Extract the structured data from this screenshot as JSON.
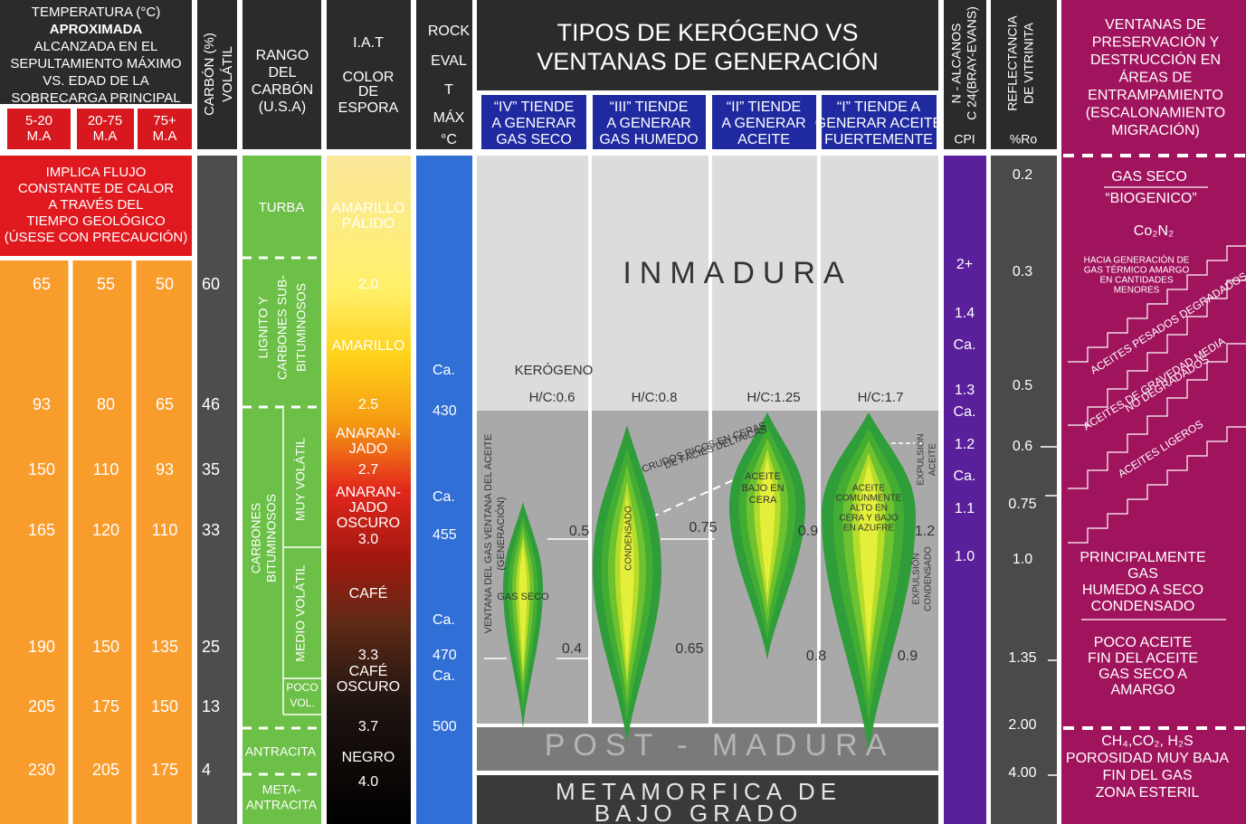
{
  "temperature": {
    "header": [
      "TEMPERATURA (°C)",
      "APROXIMADA",
      "ALCANZADA EN EL",
      "SEPULTAMIENTO MÁXIMO",
      "VS. EDAD DE LA",
      "SOBRECARGA PRINCIPAL"
    ],
    "ages": [
      [
        "5-20",
        "M.A"
      ],
      [
        "20-75",
        "M.A"
      ],
      [
        "75+",
        "M.A"
      ]
    ],
    "note": [
      "IMPLICA FLUJO",
      "CONSTANTE DE CALOR",
      "A TRAVÉS DEL",
      "TIEMPO GEOLÓGICO",
      "(ÚSESE CON PRECAUCIÓN)"
    ],
    "rows": [
      [
        "65",
        "55",
        "50"
      ],
      [
        "93",
        "80",
        "65"
      ],
      [
        "150",
        "110",
        "93"
      ],
      [
        "165",
        "120",
        "110"
      ],
      [
        "190",
        "150",
        "135"
      ],
      [
        "205",
        "175",
        "150"
      ],
      [
        "230",
        "205",
        "175"
      ]
    ]
  },
  "carbon": {
    "header": [
      "CARBÓN (%)",
      "VOLÁTIL"
    ],
    "values": [
      "60",
      "46",
      "35",
      "33",
      "25",
      "13",
      "4"
    ]
  },
  "rank": {
    "header": [
      "RANGO",
      "DEL",
      "CARBÓN",
      "(U.S.A)"
    ],
    "turba": "TURBA",
    "lignito": [
      "LIGNITO Y",
      "CARBONES SUB-",
      "BITUMINOSOS"
    ],
    "bituminosos": [
      "CARBONES",
      "BITUMINOSOS"
    ],
    "muy_volatil": "MUY VOLÁTIL",
    "medio_volatil": "MEDIO VOLÁTIL",
    "poco_volatil": [
      "POCO",
      "VOL."
    ],
    "antracita": "ANTRACITA",
    "meta_antracita": [
      "META-",
      "ANTRACITA"
    ]
  },
  "iat": {
    "header": [
      "I.A.T",
      "COLOR",
      "DE",
      "ESPORA"
    ],
    "labels": [
      [
        "AMARILLO",
        "PÁLIDO"
      ],
      [
        "2.0"
      ],
      [
        "AMARILLO"
      ],
      [
        "2.5"
      ],
      [
        "ANARAN-",
        "JADO"
      ],
      [
        "2.7"
      ],
      [
        "ANARAN-",
        "JADO",
        "OSCURO"
      ],
      [
        "3.0"
      ],
      [
        "CAFÉ"
      ],
      [
        "3.3"
      ],
      [
        "CAFÉ",
        "OSCURO"
      ],
      [
        "3.7"
      ],
      [
        "NEGRO"
      ],
      [
        "4.0"
      ]
    ]
  },
  "rock_eval": {
    "header": [
      "ROCK",
      "EVAL",
      "T",
      "MÁX",
      "°C"
    ],
    "labels": [
      "Ca.",
      "430",
      "Ca.",
      "455",
      "Ca.",
      "470",
      "Ca.",
      "500"
    ]
  },
  "kerogen": {
    "title": [
      "TIPOS DE KERÓGENO VS",
      "VENTANAS DE GENERACIÓN"
    ],
    "types": [
      [
        "“IV” TIENDE",
        "A GENERAR",
        "GAS SECO"
      ],
      [
        "“III” TIENDE",
        "A GENERAR",
        "GAS HUMEDO"
      ],
      [
        "“II” TIENDE",
        "A GENERAR",
        "ACEITE"
      ],
      [
        "“I” TIENDE A",
        "GENERAR ACEITE",
        "FUERTEMENTE"
      ]
    ],
    "zones": {
      "inmadura": "INMADURA",
      "post_madura": "POST - MADURA",
      "metamorfica": [
        "METAMORFICA DE",
        "BAJO GRADO"
      ]
    },
    "kerogeno_label": "KERÓGENO",
    "hc": [
      "H/C:0.6",
      "H/C:0.8",
      "H/C:1.25",
      "H/C:1.7"
    ],
    "upper_values": [
      "0.5",
      "0.75",
      "0.9",
      "1.2"
    ],
    "lower_values": [
      "0.4",
      "0.65",
      "0.8",
      "0.9"
    ],
    "window_label": [
      "VENTANA DEL GAS VENTANA DEL ACEITE",
      "(GENERACIÓN)"
    ],
    "gas_seco": "GAS SECO",
    "condensado": "CONDENSADO",
    "crudos": [
      "CRUDOS RICOS EN CERAS",
      "DE FACIES DELTAICAS"
    ],
    "aceite_cera": [
      "ACEITE",
      "BAJO EN",
      "CERA"
    ],
    "aceite_azufre": [
      "ACEITE",
      "COMUNMENTE",
      "ALTO EN",
      "CERA Y BAJO",
      "EN AZUFRE"
    ],
    "expulsion_aceite": [
      "EXPULSIÓN",
      "ACEITE"
    ],
    "expulsion_condensado": [
      "EXPULSIÓN",
      "CONDENSADO"
    ]
  },
  "n_alkanes": {
    "header": [
      "N - ALCANOS",
      "C 24(BRAY-EVANS)"
    ],
    "cpi": "CPI",
    "labels": [
      "2+",
      "1.4",
      "Ca.",
      "1.3",
      "Ca.",
      "1.2",
      "Ca.",
      "1.1",
      "1.0"
    ]
  },
  "reflectance": {
    "header": [
      "REFLECTANCIA",
      "DE VITRINITA"
    ],
    "unit": "%Ro",
    "labels": [
      "0.2",
      "0.3",
      "0.5",
      "0.6",
      "0.75",
      "1.0",
      "1.35",
      "2.00",
      "4.00"
    ]
  },
  "windows": {
    "header": [
      "VENTANAS DE",
      "PRESERVACIÓN Y",
      "DESTRUCCIÓN EN",
      "ÁREAS DE",
      "ENTRAMPAMIENTO",
      "(ESCALONAMIENTO",
      "MIGRACIÓN)"
    ],
    "gas_seco": "GAS SECO",
    "biogenico": "“BIOGENICO”",
    "co2n2": "Co₂N₂",
    "termico": [
      "HACIA GENERACIÓN DE",
      "GAS TÉRMICO AMARGO",
      "EN CANTIDADES",
      "MENORES"
    ],
    "pesados": "ACEITES PESADOS DEGRADADOS",
    "media": [
      "ACEITES DE GRAVEDAD MEDIA",
      "NO DEGRADADOS"
    ],
    "ligeros": "ACEITES LIGEROS",
    "principalmente": [
      "PRINCIPALMENTE",
      "GAS",
      "HUMEDO A SECO",
      "CONDENSADO"
    ],
    "poco_aceite": [
      "POCO ACEITE",
      "FIN DEL ACEITE",
      "GAS SECO A",
      "AMARGO"
    ],
    "esteril": [
      "CH₄,CO₂, H₂S",
      "POROSIDAD MUY BAJA",
      "FIN DEL GAS",
      "ZONA ESTERIL"
    ]
  }
}
